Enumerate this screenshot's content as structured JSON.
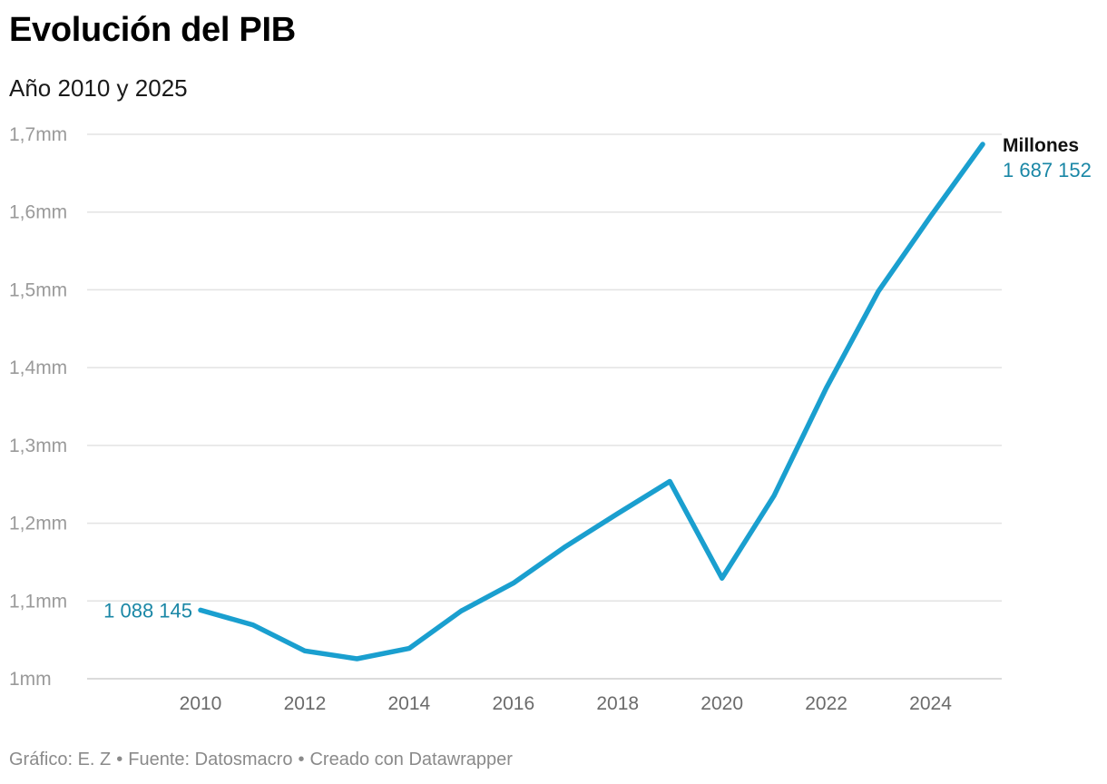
{
  "header": {
    "title": "Evolución del PIB",
    "subtitle": "Año 2010 y 2025"
  },
  "footer": {
    "credit": "Gráfico: E. Z",
    "source": "Fuente: Datosmacro",
    "tool": "Creado con Datawrapper",
    "separator": "•"
  },
  "colors": {
    "line": "#1a9fcf",
    "value_label": "#1a87a6",
    "grid": "#e3e3e3",
    "axis_text": "#9a9a9a"
  },
  "chart_data": {
    "type": "line",
    "title": "Evolución del PIB",
    "subtitle": "Año 2010 y 2025",
    "xlabel": "",
    "ylabel": "",
    "x": [
      2010,
      2011,
      2012,
      2013,
      2014,
      2015,
      2016,
      2017,
      2018,
      2019,
      2020,
      2021,
      2022,
      2023,
      2024,
      2025
    ],
    "series": [
      {
        "name": "Millones",
        "values": [
          1088145,
          1069323,
          1035760,
          1025693,
          1038949,
          1087112,
          1122967,
          1170024,
          1212276,
          1253710,
          1129216,
          1235474,
          1373629,
          1498324,
          1594330,
          1687152
        ]
      }
    ],
    "ylim": [
      1000000,
      1700000
    ],
    "yticks": [
      1000000,
      1100000,
      1200000,
      1300000,
      1400000,
      1500000,
      1600000,
      1700000
    ],
    "ytick_labels": [
      "1mm",
      "1,1mm",
      "1,2mm",
      "1,3mm",
      "1,4mm",
      "1,5mm",
      "1,6mm",
      "1,7mm"
    ],
    "xticks": [
      2010,
      2012,
      2014,
      2016,
      2018,
      2020,
      2022,
      2024
    ],
    "xtick_labels": [
      "2010",
      "2012",
      "2014",
      "2016",
      "2018",
      "2020",
      "2022",
      "2024"
    ],
    "start_label": "1 088 145",
    "end_label": "1 687 152",
    "series_label": "Millones",
    "grid": true
  }
}
